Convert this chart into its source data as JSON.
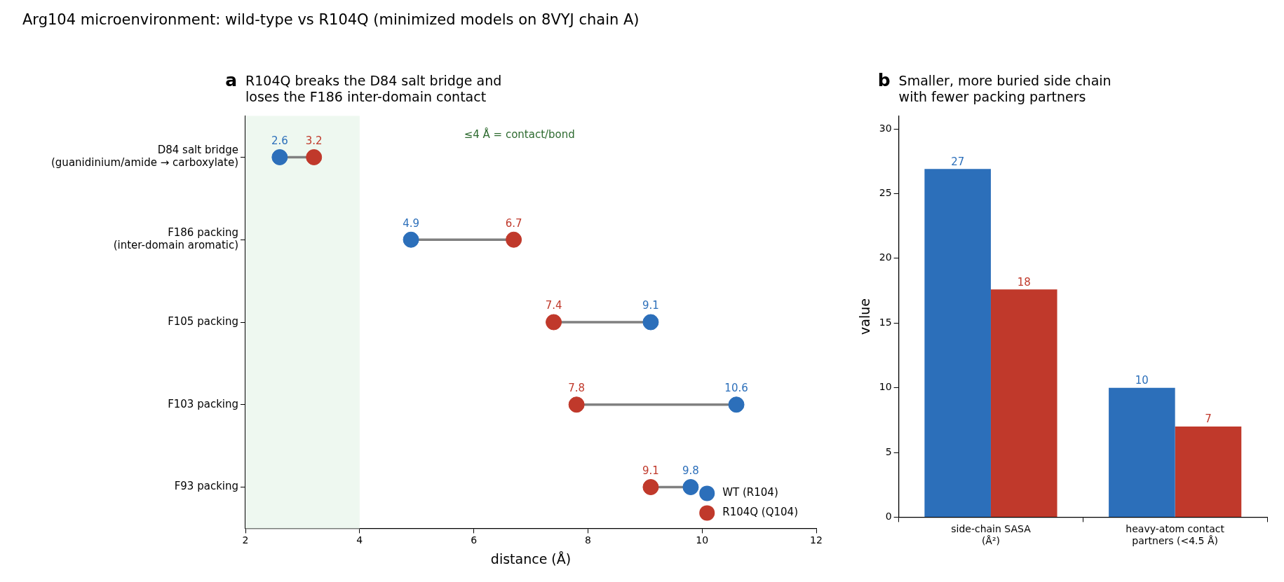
{
  "chart_data": [
    {
      "type": "other",
      "title": "Arg104 microenvironment: wild-type vs R104Q (minimized models on 8VYJ chain A)"
    },
    {
      "type": "scatter",
      "orientation": "horizontal",
      "title": "R104Q breaks the D84 salt bridge and\nloses the F186 inter-domain contact",
      "annotations": [
        "a",
        "≤4 Å = contact/bond"
      ],
      "xlabel": "distance (Å)",
      "categories": [
        "D84 salt bridge\n(guanidinium/amide → carboxylate)",
        "F186 packing\n(inter-domain aromatic)",
        "F105 packing",
        "F103 packing",
        "F93 packing"
      ],
      "series": [
        {
          "name": "WT (R104)",
          "color": "#2c6fba",
          "values": [
            2.6,
            4.9,
            9.1,
            10.6,
            9.8
          ]
        },
        {
          "name": "R104Q (Q104)",
          "color": "#c0392b",
          "values": [
            3.2,
            6.7,
            7.4,
            7.8,
            9.1
          ]
        }
      ],
      "xlim": [
        2,
        12
      ],
      "xticks": [
        2,
        4,
        6,
        8,
        10,
        12
      ],
      "bands": [
        {
          "axis": "x",
          "from": 2,
          "to": 4,
          "color": "#eef8f0"
        }
      ],
      "data_labels": true,
      "legend": "bottom right",
      "marker": "circle",
      "grid": false
    },
    {
      "type": "bar",
      "title": "Smaller, more buried side chain\nwith fewer packing partners",
      "annotations": [
        "b"
      ],
      "ylabel": "value",
      "categories": [
        "side-chain SASA\n(Å²)",
        "heavy-atom contact\npartners (<4.5 Å)"
      ],
      "series": [
        {
          "color": "#2c6fba",
          "values": [
            26.9,
            10
          ],
          "value_labels": [
            "27",
            "10"
          ]
        },
        {
          "color": "#c0392b",
          "values": [
            17.6,
            7
          ],
          "value_labels": [
            "18",
            "7"
          ]
        }
      ],
      "ylim": [
        0,
        31
      ],
      "yticks": [
        0,
        5,
        10,
        15,
        20,
        25,
        30
      ],
      "grid": false
    }
  ]
}
